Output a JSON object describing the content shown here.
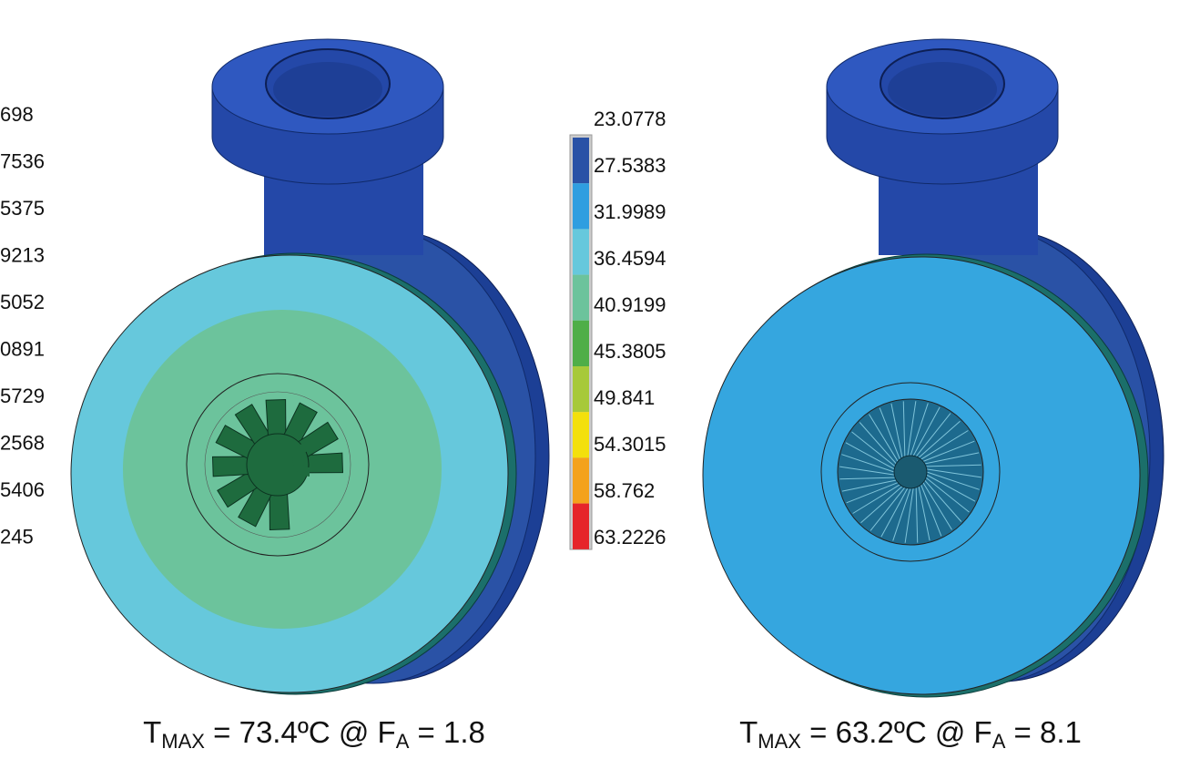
{
  "left_legend": {
    "labels": [
      "698",
      "7536",
      "5375",
      "9213",
      "5052",
      "0891",
      "5729",
      "2568",
      "5406",
      "245"
    ]
  },
  "right_legend": {
    "labels": [
      "23.0778",
      "27.5383",
      "31.9989",
      "36.4594",
      "40.9199",
      "45.3805",
      "49.841",
      "54.3015",
      "58.762",
      "63.2226"
    ],
    "colors": [
      "#2a52a6",
      "#2f9ee0",
      "#66c8dc",
      "#6cc39c",
      "#4fae48",
      "#a7c93a",
      "#f3e00c",
      "#f4a21c",
      "#e6252a"
    ]
  },
  "captions": [
    {
      "symbol": "T",
      "symbol_sub": "MAX",
      "middle": " = 73.4ºC @ F",
      "middle_sub": "A",
      "end": " = 1.8"
    },
    {
      "symbol": "T",
      "symbol_sub": "MAX",
      "middle": " = 63.2ºC @ F",
      "middle_sub": "A",
      "end": " = 8.1"
    }
  ]
}
